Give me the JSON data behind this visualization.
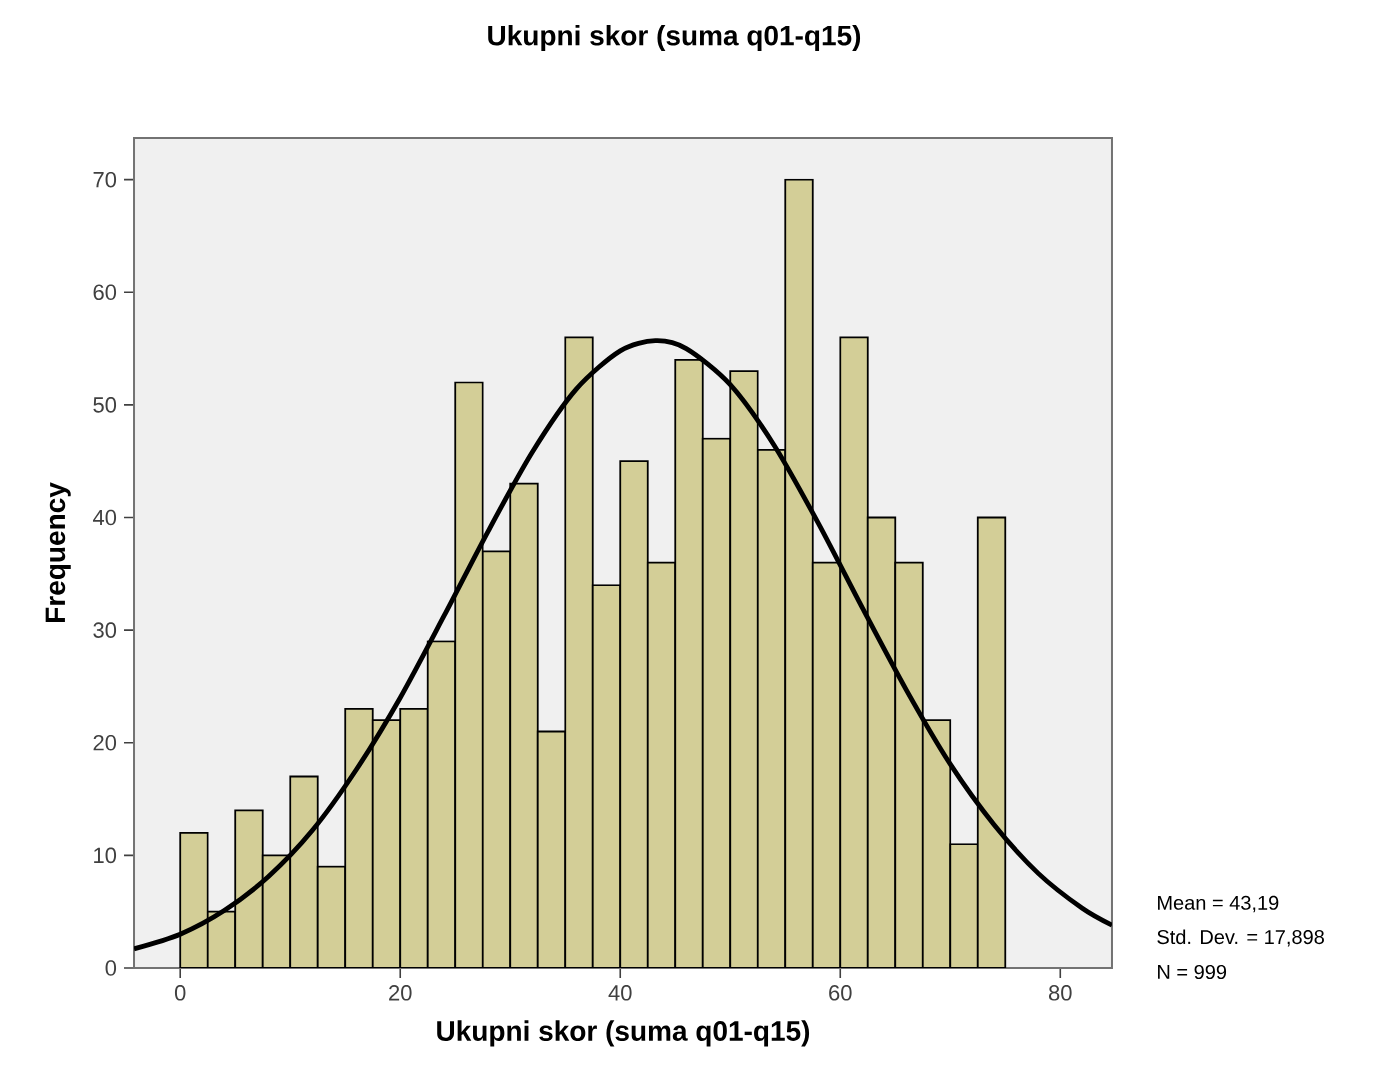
{
  "chart_data": {
    "type": "histogram",
    "title": "Ukupni skor (suma q01-q15)",
    "xlabel": "Ukupni skor (suma q01-q15)",
    "ylabel": "Frequency",
    "xlim": [
      -4.2,
      84.7
    ],
    "ylim": [
      0,
      73.7
    ],
    "xticks": [
      0,
      20,
      40,
      60,
      80
    ],
    "yticks": [
      0,
      10,
      20,
      30,
      40,
      50,
      60,
      70
    ],
    "grid": false,
    "series": [
      {
        "color": "#d3ce97",
        "bins": [
          0,
          2.5,
          5,
          7.5,
          10,
          12.5,
          15,
          17.5,
          20,
          22.5,
          25,
          27.5,
          30,
          32.5,
          35,
          37.5,
          40,
          42.5,
          45,
          47.5,
          50,
          52.5,
          55,
          57.5,
          60,
          62.5,
          65,
          67.5,
          70,
          72.5,
          75
        ],
        "values": [
          12,
          5,
          14,
          10,
          17,
          9,
          23,
          22,
          23,
          29,
          52,
          37,
          43,
          21,
          56,
          34,
          45,
          36,
          54,
          47,
          53,
          46,
          70,
          36,
          56,
          40,
          36,
          22,
          11,
          40
        ]
      },
      {
        "type": "line",
        "color": "#000000",
        "x": [
          -4.2,
          0,
          4,
          8,
          12,
          16,
          20,
          24,
          28,
          32,
          36,
          40,
          43.19,
          46,
          50,
          54,
          58,
          62,
          66,
          70,
          74,
          78,
          82,
          84.7
        ],
        "values": [
          1.7,
          3.0,
          5.1,
          8.1,
          12.2,
          17.6,
          24.0,
          31.3,
          38.8,
          45.8,
          51.4,
          54.8,
          55.7,
          55.0,
          51.8,
          46.4,
          39.5,
          32.0,
          24.7,
          18.1,
          12.7,
          8.4,
          5.3,
          3.8
        ]
      }
    ],
    "annotations": [
      "Mean = 43,19",
      "Std. Dev. = 17,898",
      "N = 999"
    ]
  }
}
